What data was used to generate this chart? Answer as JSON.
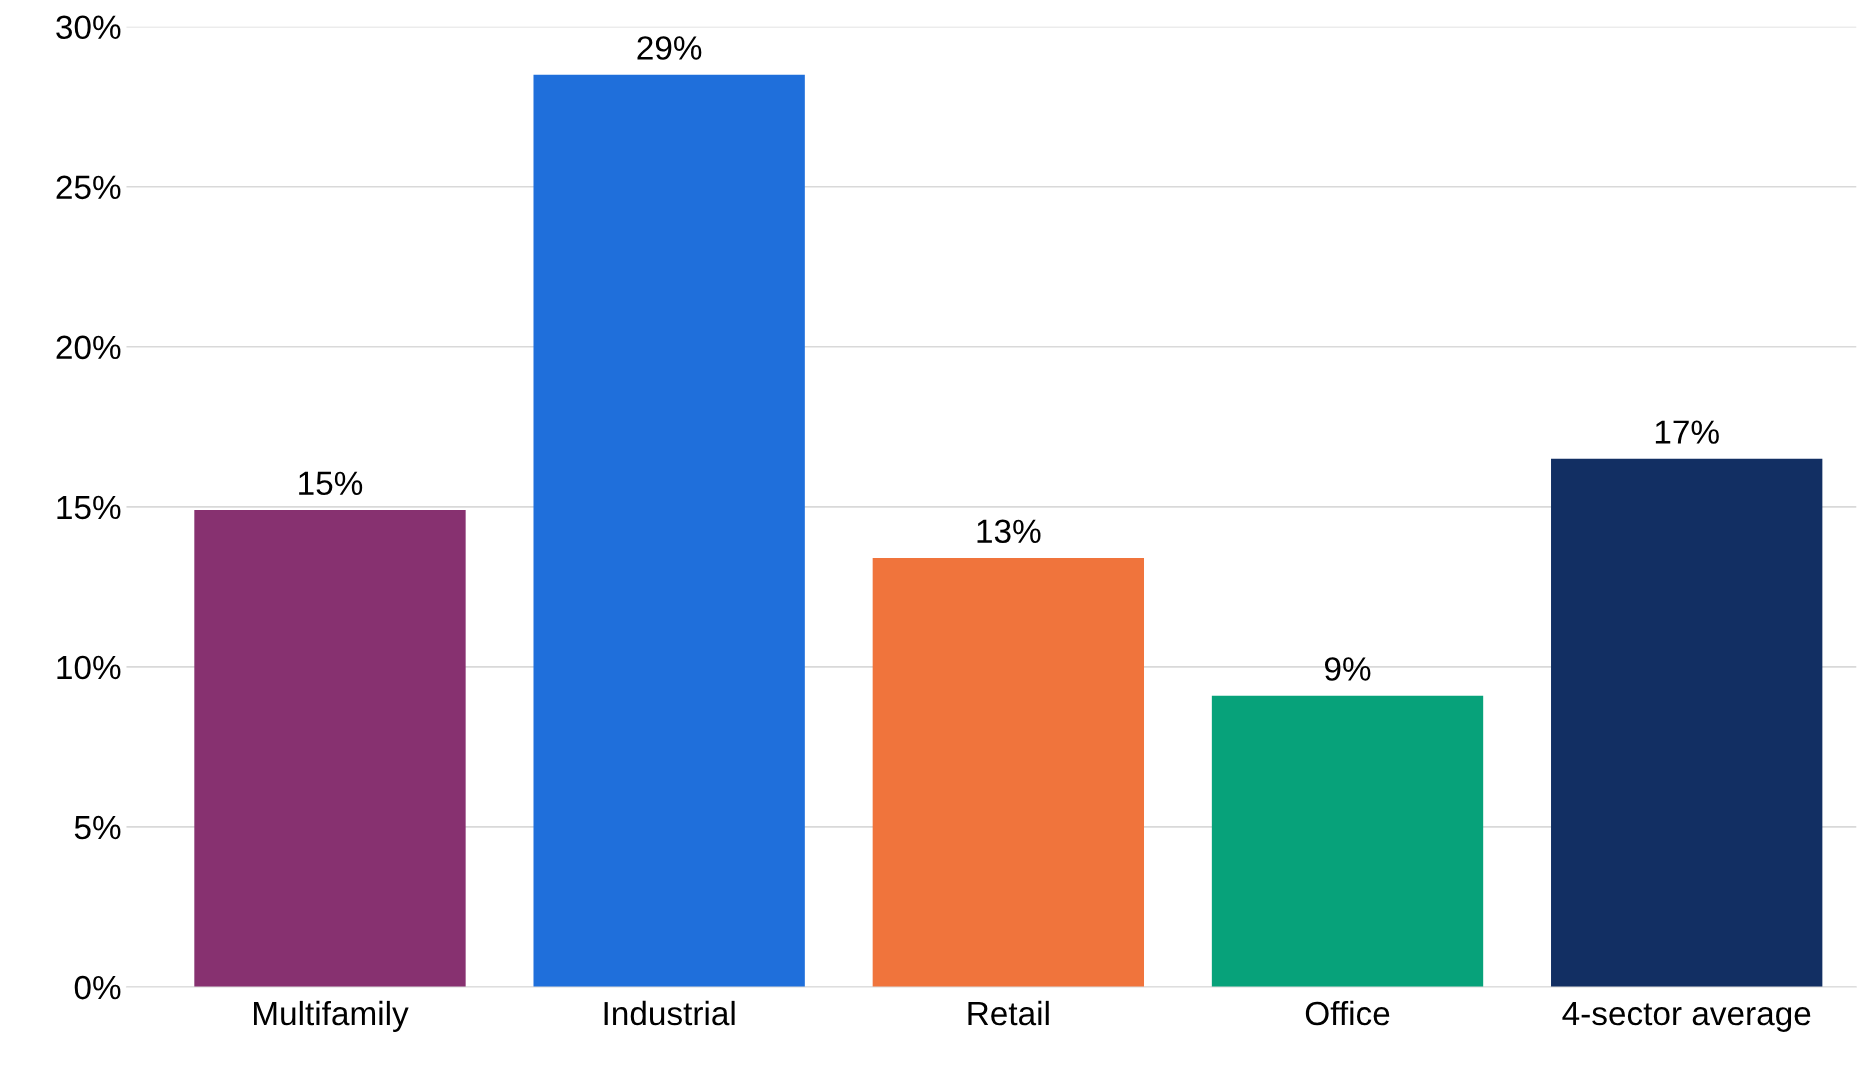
{
  "chart_data": {
    "type": "bar",
    "categories": [
      "Multifamily",
      "Industrial",
      "Retail",
      "Office",
      "4-sector average"
    ],
    "values": [
      14.9,
      28.5,
      13.4,
      9.1,
      16.5
    ],
    "colors": [
      "#873170",
      "#1f6fdb",
      "#f0743c",
      "#07a27a",
      "#122f63"
    ],
    "value_labels": [
      "15%",
      "29%",
      "13%",
      "9%",
      "17%"
    ],
    "ylim": [
      0,
      30
    ],
    "yticks": [
      {
        "value": 0,
        "label": "0%"
      },
      {
        "value": 5,
        "label": "5%"
      },
      {
        "value": 10,
        "label": "10%"
      },
      {
        "value": 15,
        "label": "15%"
      },
      {
        "value": 20,
        "label": "20%"
      },
      {
        "value": 25,
        "label": "25%"
      },
      {
        "value": 30,
        "label": "30%"
      }
    ],
    "grid": "y",
    "legend": false
  }
}
